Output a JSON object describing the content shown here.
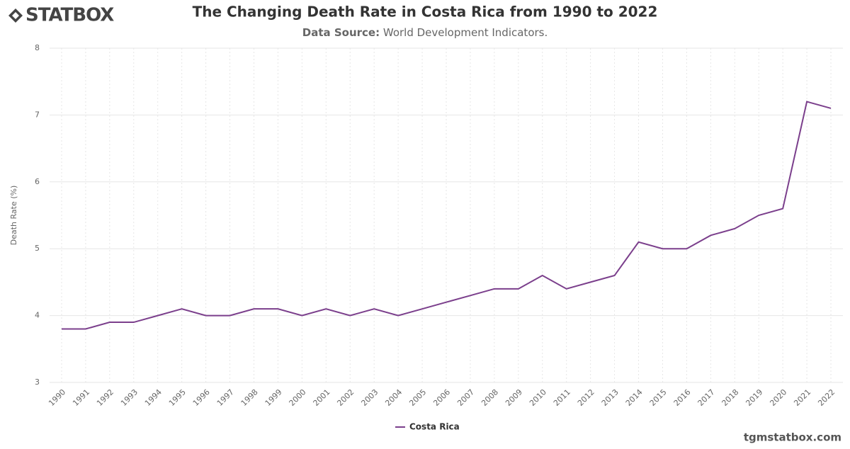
{
  "brand": {
    "logo": "STATBOX",
    "footer": "tgmstatbox.com"
  },
  "chart_data": {
    "type": "line",
    "title": "The Changing Death Rate in Costa Rica from 1990 to 2022",
    "subtitle_label": "Data Source:",
    "subtitle": "World Development Indicators.",
    "y_label": "Death Rate (%)",
    "categories": [
      "1990",
      "1991",
      "1992",
      "1993",
      "1994",
      "1995",
      "1996",
      "1997",
      "1998",
      "1999",
      "2000",
      "2001",
      "2002",
      "2003",
      "2004",
      "2005",
      "2006",
      "2007",
      "2008",
      "2009",
      "2010",
      "2011",
      "2012",
      "2013",
      "2014",
      "2015",
      "2016",
      "2017",
      "2018",
      "2019",
      "2020",
      "2021",
      "2022"
    ],
    "series": [
      {
        "name": "Costa Rica",
        "color": "#7b3f8c",
        "values": [
          3.8,
          3.8,
          3.9,
          3.9,
          4.0,
          4.1,
          4.0,
          4.0,
          4.1,
          4.1,
          4.0,
          4.1,
          4.0,
          4.1,
          4.0,
          4.1,
          4.2,
          4.3,
          4.4,
          4.4,
          4.6,
          4.4,
          4.5,
          4.6,
          5.1,
          5.0,
          5.0,
          5.2,
          5.3,
          5.5,
          5.6,
          7.2,
          7.1
        ]
      }
    ],
    "ylim": [
      3,
      8
    ],
    "yticks": [
      3,
      4,
      5,
      6,
      7,
      8
    ],
    "grid": true,
    "legend": "bottom"
  }
}
